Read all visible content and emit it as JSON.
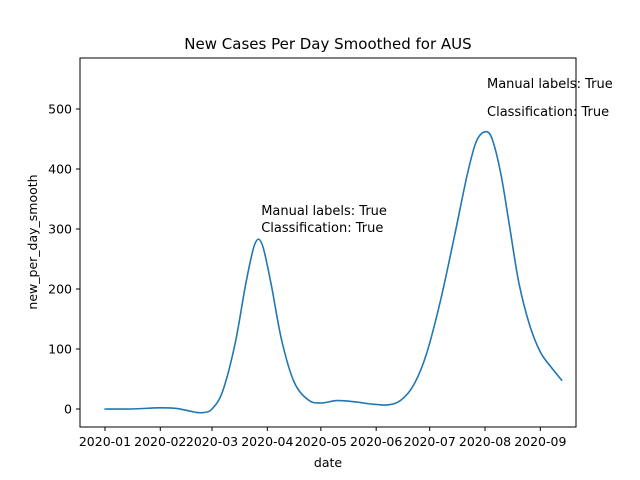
{
  "chart_data": {
    "type": "line",
    "title": "New Cases Per Day Smoothed for AUS",
    "xlabel": "date",
    "ylabel": "new_per_day_smooth",
    "x_axis_type": "date",
    "xlim": [
      "2019-12-18",
      "2020-09-21"
    ],
    "ylim": [
      -30,
      585
    ],
    "grid": false,
    "x_tick_values": [
      "2020-01-01",
      "2020-02-01",
      "2020-03-01",
      "2020-04-01",
      "2020-05-01",
      "2020-06-01",
      "2020-07-01",
      "2020-08-01",
      "2020-09-01"
    ],
    "x_tick_labels": [
      "2020-01",
      "2020-02",
      "2020-03",
      "2020-04",
      "2020-05",
      "2020-06",
      "2020-07",
      "2020-08",
      "2020-09"
    ],
    "y_ticks": [
      0,
      100,
      200,
      300,
      400,
      500
    ],
    "series": [
      {
        "color": "#1f77b4",
        "x": [
          "2020-01-01",
          "2020-01-16",
          "2020-01-31",
          "2020-02-10",
          "2020-02-20",
          "2020-02-25",
          "2020-03-01",
          "2020-03-07",
          "2020-03-14",
          "2020-03-20",
          "2020-03-25",
          "2020-03-29",
          "2020-04-03",
          "2020-04-09",
          "2020-04-16",
          "2020-04-24",
          "2020-05-01",
          "2020-05-10",
          "2020-05-20",
          "2020-05-30",
          "2020-06-08",
          "2020-06-15",
          "2020-06-22",
          "2020-06-29",
          "2020-07-07",
          "2020-07-15",
          "2020-07-22",
          "2020-07-27",
          "2020-08-01",
          "2020-08-05",
          "2020-08-10",
          "2020-08-15",
          "2020-08-20",
          "2020-08-26",
          "2020-09-01",
          "2020-09-07",
          "2020-09-13"
        ],
        "y": [
          0,
          0,
          2,
          1,
          -5,
          -6,
          0,
          30,
          110,
          210,
          275,
          275,
          210,
          115,
          45,
          15,
          10,
          14,
          12,
          8,
          7,
          15,
          40,
          90,
          180,
          290,
          390,
          445,
          462,
          450,
          390,
          300,
          210,
          140,
          95,
          70,
          48
        ]
      }
    ],
    "annotations": [
      {
        "x": "2020-03-28",
        "y": 280,
        "lines": [
          "Manual labels: True",
          "Classification: True"
        ]
      },
      {
        "x": "2020-08-01",
        "y": 462,
        "lines": [
          "Manual labels: True",
          "Classification: True"
        ]
      }
    ]
  }
}
